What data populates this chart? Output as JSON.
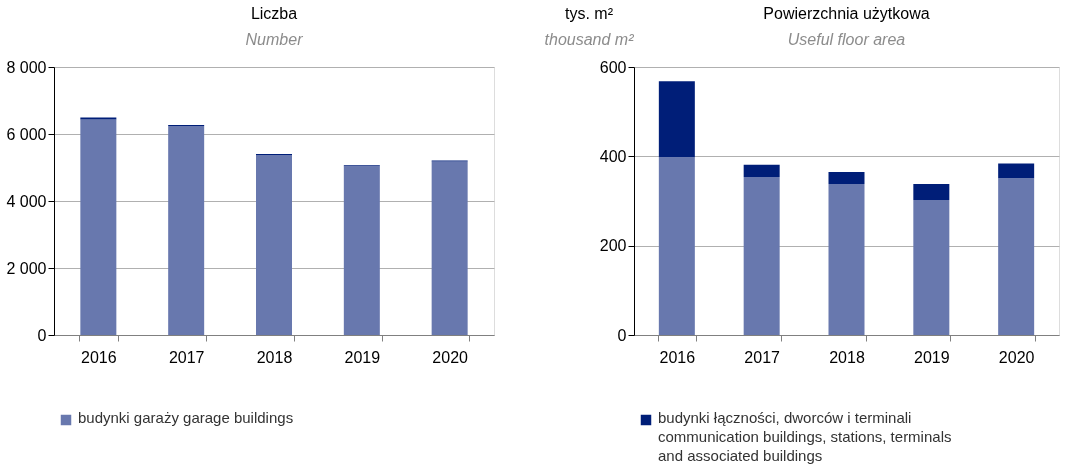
{
  "chart_data": [
    {
      "type": "bar",
      "title": "Liczba",
      "subtitle": "Number",
      "categories": [
        "2016",
        "2017",
        "2018",
        "2019",
        "2020"
      ],
      "stacked": true,
      "series": [
        {
          "name": "budynki garaży  garage buildings",
          "color": "#6878ae",
          "values": [
            6430,
            6240,
            5370,
            5040,
            5180
          ]
        },
        {
          "color": "#001e78",
          "values": [
            60,
            30,
            30,
            30,
            30
          ]
        }
      ],
      "ylim": [
        0,
        8000
      ],
      "yticks": [
        0,
        {
          "value": 2000,
          "label": "2 000"
        },
        {
          "value": 4000,
          "label": "4 000"
        },
        {
          "value": 6000,
          "label": "6 000"
        },
        {
          "value": 8000,
          "label": "8 000"
        }
      ],
      "grid": "y",
      "legend": "bottom"
    },
    {
      "type": "bar",
      "title": "Powierzchnia użytkowa",
      "subtitle": "Useful floor area",
      "ylabel": "tys. m²\nthousand m²",
      "categories": [
        "2016",
        "2017",
        "2018",
        "2019",
        "2020"
      ],
      "stacked": true,
      "series": [
        {
          "color": "#6878ae",
          "values": [
            398,
            354,
            338,
            302,
            351
          ]
        },
        {
          "name": "budynki łączności, dworców i terminali\ncommunication buildings, stations, terminals\nand associated buildings",
          "color": "#001e78",
          "values": [
            170,
            27,
            27,
            36,
            33
          ]
        }
      ],
      "ylim": [
        0,
        600
      ],
      "yticks": [
        0,
        200,
        400,
        600
      ],
      "grid": "y",
      "legend": "bottom"
    }
  ]
}
